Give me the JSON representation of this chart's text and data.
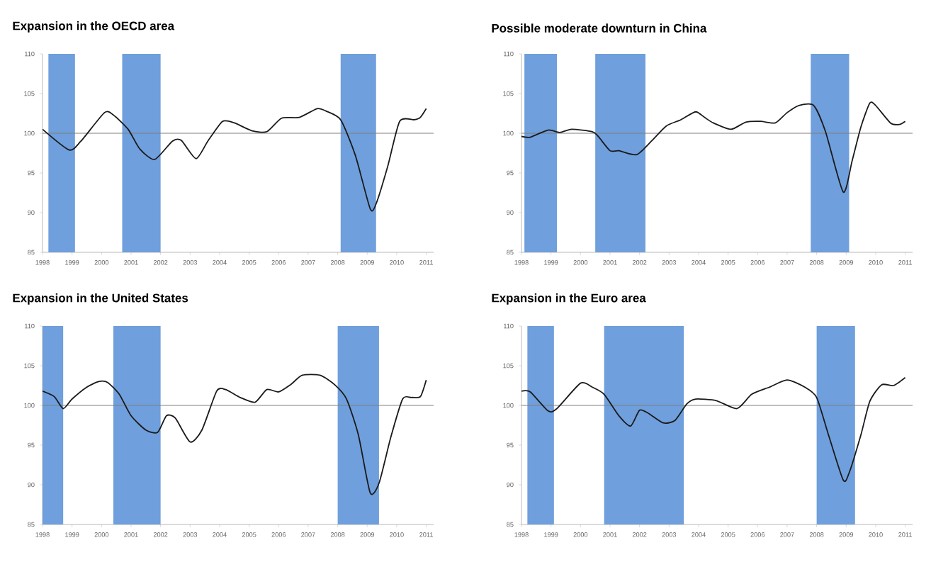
{
  "chart_data": [
    {
      "type": "line",
      "title": "Expansion in the OECD area",
      "xlim": [
        1998,
        2011.25
      ],
      "xticks": [
        1998,
        1999,
        2000,
        2001,
        2002,
        2003,
        2004,
        2005,
        2006,
        2007,
        2008,
        2009,
        2010,
        2011
      ],
      "ylim": [
        85,
        110
      ],
      "yticks": [
        85,
        90,
        95,
        100,
        105,
        110
      ],
      "bands": [
        {
          "axis": "x",
          "from": 1998.2,
          "to": 1999.1,
          "color": "#6f9fdc"
        },
        {
          "axis": "x",
          "from": 2000.7,
          "to": 2002.0,
          "color": "#6f9fdc"
        },
        {
          "axis": "x",
          "from": 2008.1,
          "to": 2009.3,
          "color": "#6f9fdc"
        }
      ],
      "ref_lines": [
        {
          "axis": "y",
          "value": 100,
          "color": "#808080"
        }
      ],
      "series": [
        {
          "color": "#1a1a1a",
          "x": [
            1998.0,
            1998.9,
            1999.3,
            2000.1,
            2000.4,
            2000.9,
            2001.3,
            2001.8,
            2002.4,
            2002.7,
            2003.2,
            2003.6,
            2004.1,
            2004.5,
            2005.1,
            2005.6,
            2006.1,
            2006.7,
            2007.3,
            2007.6,
            2008.1,
            2008.6,
            2009.1,
            2009.3,
            2009.7,
            2010.1,
            2010.6,
            2010.8,
            2011.0
          ],
          "values": [
            100.5,
            97.9,
            99,
            102.6,
            102.3,
            100.5,
            98,
            96.7,
            99,
            99.1,
            96.8,
            99,
            101.5,
            101.3,
            100.3,
            100.2,
            101.9,
            102,
            103.1,
            102.8,
            101.7,
            97.2,
            90.5,
            91.1,
            95.9,
            101.5,
            101.7,
            102,
            103.1
          ]
        }
      ]
    },
    {
      "type": "line",
      "title": "Possible moderate downturn in China",
      "xlim": [
        1998,
        2011.25
      ],
      "xticks": [
        1998,
        1999,
        2000,
        2001,
        2002,
        2003,
        2004,
        2005,
        2006,
        2007,
        2008,
        2009,
        2010,
        2011
      ],
      "ylim": [
        85,
        110
      ],
      "yticks": [
        85,
        90,
        95,
        100,
        105,
        110
      ],
      "bands": [
        {
          "axis": "x",
          "from": 1998.1,
          "to": 1999.2,
          "color": "#6f9fdc"
        },
        {
          "axis": "x",
          "from": 2000.5,
          "to": 2002.2,
          "color": "#6f9fdc"
        },
        {
          "axis": "x",
          "from": 2007.8,
          "to": 2009.1,
          "color": "#6f9fdc"
        }
      ],
      "ref_lines": [
        {
          "axis": "y",
          "value": 100,
          "color": "#808080"
        }
      ],
      "series": [
        {
          "color": "#1a1a1a",
          "x": [
            1998.0,
            1998.3,
            1998.9,
            1999.3,
            1999.7,
            2000.4,
            2000.6,
            2001.0,
            2001.3,
            2001.9,
            2002.4,
            2002.9,
            2003.4,
            2003.9,
            2004.2,
            2004.5,
            2005.1,
            2005.6,
            2006.1,
            2006.6,
            2007.0,
            2007.4,
            2007.9,
            2008.3,
            2008.9,
            2009.2,
            2009.5,
            2009.8,
            2010.0,
            2010.5,
            2010.8,
            2011.0
          ],
          "values": [
            99.6,
            99.5,
            100.4,
            100.1,
            100.5,
            100.2,
            99.6,
            97.8,
            97.8,
            97.3,
            99,
            100.9,
            101.7,
            102.7,
            102,
            101.3,
            100.5,
            101.4,
            101.5,
            101.3,
            102.6,
            103.5,
            103.5,
            100.2,
            92.6,
            96.5,
            100.8,
            103.8,
            103.5,
            101.3,
            101.1,
            101.5
          ]
        }
      ]
    },
    {
      "type": "line",
      "title": "Expansion in the United States",
      "xlim": [
        1998,
        2011.25
      ],
      "xticks": [
        1998,
        1999,
        2000,
        2001,
        2002,
        2003,
        2004,
        2005,
        2006,
        2007,
        2008,
        2009,
        2010,
        2011
      ],
      "ylim": [
        85,
        110
      ],
      "yticks": [
        85,
        90,
        95,
        100,
        105,
        110
      ],
      "bands": [
        {
          "axis": "x",
          "from": 1998.0,
          "to": 1998.7,
          "color": "#6f9fdc"
        },
        {
          "axis": "x",
          "from": 2000.4,
          "to": 2002.0,
          "color": "#6f9fdc"
        },
        {
          "axis": "x",
          "from": 2008.0,
          "to": 2009.4,
          "color": "#6f9fdc"
        }
      ],
      "ref_lines": [
        {
          "axis": "y",
          "value": 100,
          "color": "#808080"
        }
      ],
      "series": [
        {
          "color": "#1a1a1a",
          "x": [
            1998.0,
            1998.4,
            1998.7,
            1999.0,
            1999.5,
            1999.9,
            2000.2,
            2000.6,
            2001.0,
            2001.5,
            2001.9,
            2002.2,
            2002.5,
            2003.0,
            2003.4,
            2003.9,
            2004.2,
            2004.7,
            2005.2,
            2005.6,
            2006.0,
            2006.4,
            2006.8,
            2007.4,
            2007.9,
            2008.3,
            2008.7,
            2009.1,
            2009.4,
            2009.8,
            2010.2,
            2010.5,
            2010.8,
            2011.0
          ],
          "values": [
            101.8,
            101.1,
            99.6,
            100.8,
            102.3,
            103,
            102.9,
            101.4,
            98.7,
            96.9,
            96.6,
            98.7,
            98.4,
            95.4,
            96.9,
            101.8,
            102,
            101,
            100.4,
            102,
            101.7,
            102.6,
            103.8,
            103.8,
            102.6,
            100.8,
            96.3,
            89,
            90.2,
            96,
            100.8,
            101,
            101.1,
            103.2
          ]
        }
      ]
    },
    {
      "type": "line",
      "title": "Expansion in the Euro area",
      "xlim": [
        1998,
        2011.25
      ],
      "xticks": [
        1998,
        1999,
        2000,
        2001,
        2002,
        2003,
        2004,
        2005,
        2006,
        2007,
        2008,
        2009,
        2010,
        2011
      ],
      "ylim": [
        85,
        110
      ],
      "yticks": [
        85,
        90,
        95,
        100,
        105,
        110
      ],
      "bands": [
        {
          "axis": "x",
          "from": 1998.2,
          "to": 1999.1,
          "color": "#6f9fdc"
        },
        {
          "axis": "x",
          "from": 2000.8,
          "to": 2003.5,
          "color": "#6f9fdc"
        },
        {
          "axis": "x",
          "from": 2008.0,
          "to": 2009.3,
          "color": "#6f9fdc"
        }
      ],
      "ref_lines": [
        {
          "axis": "y",
          "value": 100,
          "color": "#808080"
        }
      ],
      "series": [
        {
          "color": "#1a1a1a",
          "x": [
            1998.0,
            1998.3,
            1998.9,
            1999.2,
            2000.0,
            2000.4,
            2000.8,
            2001.3,
            2001.7,
            2002.0,
            2002.3,
            2002.8,
            2003.2,
            2003.6,
            2003.9,
            2004.6,
            2005.3,
            2005.8,
            2006.4,
            2007.0,
            2007.6,
            2008.0,
            2008.4,
            2008.9,
            2009.1,
            2009.5,
            2009.8,
            2010.2,
            2010.6,
            2011.0
          ],
          "values": [
            101.8,
            101.7,
            99.3,
            99.6,
            102.8,
            102.3,
            101.4,
            98.7,
            97.4,
            99.4,
            99,
            97.8,
            98.1,
            100.2,
            100.8,
            100.6,
            99.6,
            101.4,
            102.3,
            103.2,
            102.3,
            101,
            96.3,
            90.6,
            91.5,
            96.3,
            100.5,
            102.6,
            102.5,
            103.5
          ]
        }
      ]
    }
  ]
}
